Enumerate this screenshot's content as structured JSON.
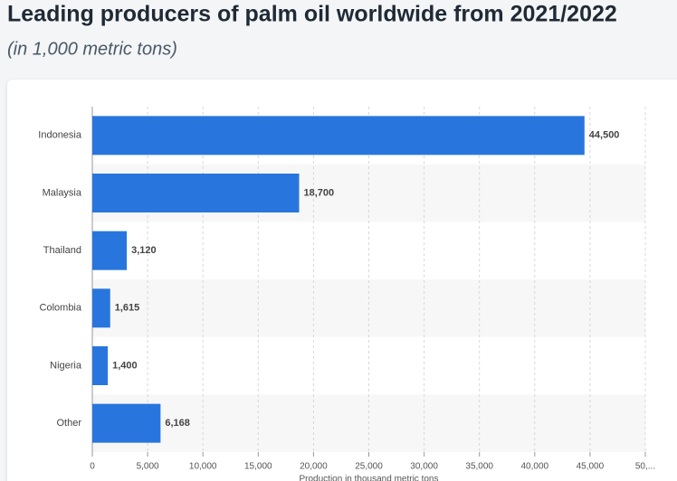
{
  "chart_data": {
    "type": "hbar",
    "title": "Leading producers of palm oil worldwide from 2021/2022",
    "subtitle": "(in 1,000 metric tons)",
    "x_label": "Production in thousand metric tons",
    "categories": [
      "Indonesia",
      "Malaysia",
      "Thailand",
      "Colombia",
      "Nigeria",
      "Other"
    ],
    "values": [
      44500,
      18700,
      3120,
      1615,
      1400,
      6168
    ],
    "value_labels": [
      "44,500",
      "18,700",
      "3,120",
      "1,615",
      "1,400",
      "6,168"
    ],
    "color": "#2876dd",
    "xlim": [
      0,
      50000
    ],
    "xticks": [
      0,
      {
        "value": 5000,
        "label": "5,000"
      },
      {
        "value": 10000,
        "label": "10,000"
      },
      {
        "value": 15000,
        "label": "15,000"
      },
      {
        "value": 20000,
        "label": "20,000"
      },
      {
        "value": 25000,
        "label": "25,000"
      },
      {
        "value": 30000,
        "label": "30,000"
      },
      {
        "value": 35000,
        "label": "35,000"
      },
      {
        "value": 40000,
        "label": "40,000"
      },
      {
        "value": 45000,
        "label": "45,000"
      },
      {
        "value": 50000,
        "label": "50,..."
      }
    ],
    "grid": true
  }
}
